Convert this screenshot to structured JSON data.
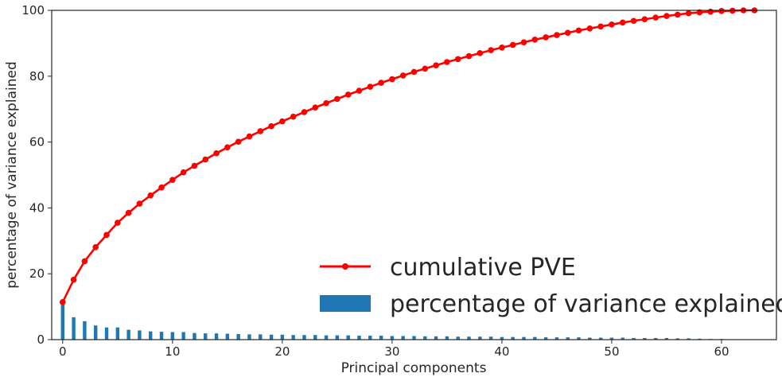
{
  "chart_data": {
    "type": "bar+line",
    "xlabel": "Principal components",
    "ylabel": "percentage of variance explained",
    "xlim": [
      -1,
      65
    ],
    "ylim": [
      0,
      100
    ],
    "xticks": [
      0,
      10,
      20,
      30,
      40,
      50,
      60
    ],
    "yticks": [
      0,
      20,
      40,
      60,
      80,
      100
    ],
    "grid": false,
    "legend_placement": "lower-right",
    "series": [
      {
        "name": "cumulative PVE",
        "kind": "line",
        "color": "#ff0000",
        "x": [
          0,
          1,
          2,
          3,
          4,
          5,
          6,
          7,
          8,
          9,
          10,
          11,
          12,
          13,
          14,
          15,
          16,
          17,
          18,
          19,
          20,
          21,
          22,
          23,
          24,
          25,
          26,
          27,
          28,
          29,
          30,
          31,
          32,
          33,
          34,
          35,
          36,
          37,
          38,
          39,
          40,
          41,
          42,
          43,
          44,
          45,
          46,
          47,
          48,
          49,
          50,
          51,
          52,
          53,
          54,
          55,
          56,
          57,
          58,
          59,
          60,
          61,
          62,
          63
        ],
        "values": [
          11.4,
          18.2,
          23.8,
          28.1,
          31.8,
          35.5,
          38.5,
          41.3,
          43.8,
          46.2,
          48.5,
          50.8,
          52.8,
          54.7,
          56.6,
          58.4,
          60.1,
          61.7,
          63.3,
          64.8,
          66.3,
          67.7,
          69.1,
          70.5,
          71.8,
          73.1,
          74.4,
          75.6,
          76.8,
          78.0,
          79.1,
          80.2,
          81.3,
          82.3,
          83.3,
          84.3,
          85.2,
          86.1,
          87.0,
          87.9,
          88.7,
          89.5,
          90.3,
          91.1,
          91.8,
          92.5,
          93.2,
          93.9,
          94.5,
          95.1,
          95.7,
          96.3,
          96.8,
          97.3,
          97.8,
          98.3,
          98.7,
          99.1,
          99.4,
          99.6,
          99.8,
          99.9,
          100.0,
          100.0
        ]
      },
      {
        "name": "percentage of variance explained",
        "kind": "bar",
        "color": "#1f77b4",
        "x": [
          0,
          1,
          2,
          3,
          4,
          5,
          6,
          7,
          8,
          9,
          10,
          11,
          12,
          13,
          14,
          15,
          16,
          17,
          18,
          19,
          20,
          21,
          22,
          23,
          24,
          25,
          26,
          27,
          28,
          29,
          30,
          31,
          32,
          33,
          34,
          35,
          36,
          37,
          38,
          39,
          40,
          41,
          42,
          43,
          44,
          45,
          46,
          47,
          48,
          49,
          50,
          51,
          52,
          53,
          54,
          55,
          56,
          57,
          58,
          59,
          60,
          61,
          62,
          63
        ],
        "values": [
          11.4,
          6.8,
          5.6,
          4.3,
          3.7,
          3.7,
          3.0,
          2.8,
          2.5,
          2.4,
          2.3,
          2.3,
          2.0,
          1.9,
          1.9,
          1.8,
          1.7,
          1.6,
          1.6,
          1.5,
          1.5,
          1.4,
          1.4,
          1.4,
          1.3,
          1.3,
          1.3,
          1.2,
          1.2,
          1.2,
          1.1,
          1.1,
          1.1,
          1.0,
          1.0,
          1.0,
          0.9,
          0.9,
          0.9,
          0.9,
          0.8,
          0.8,
          0.8,
          0.8,
          0.7,
          0.7,
          0.7,
          0.7,
          0.6,
          0.6,
          0.6,
          0.6,
          0.5,
          0.5,
          0.5,
          0.5,
          0.4,
          0.4,
          0.3,
          0.2,
          0.2,
          0.1,
          0.1,
          0.0
        ]
      }
    ]
  }
}
